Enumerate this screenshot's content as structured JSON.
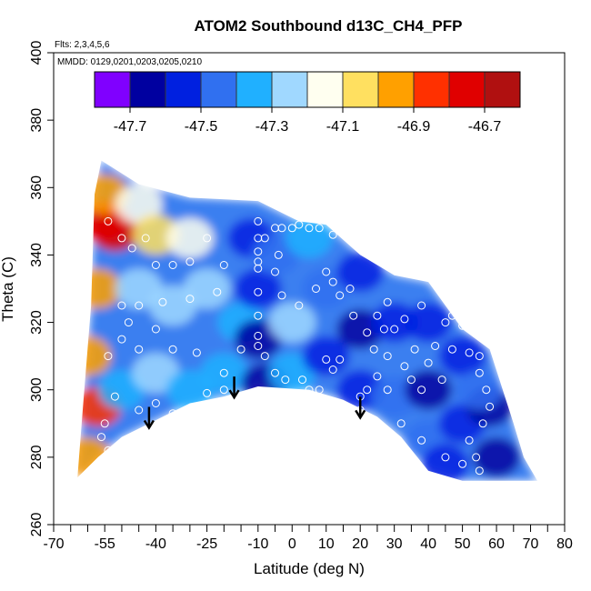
{
  "chart_data": {
    "type": "heatmap",
    "title": "ATOM2 Southbound d13C_CH4_PFP",
    "flights_note": "Flts: 2,3,4,5,6",
    "dates_note": "MMDD: 0129,0201,0203,0205,0210",
    "xlabel": "Latitude (deg N)",
    "ylabel": "Theta (C)",
    "xlim": [
      -70,
      80
    ],
    "ylim": [
      260,
      400
    ],
    "x_ticks": [
      -70,
      -55,
      -40,
      -25,
      -10,
      0,
      10,
      20,
      30,
      40,
      50,
      60,
      70,
      80
    ],
    "x_tick_labels": [
      "-70",
      "-55",
      "-40",
      "-25",
      "-10",
      "0",
      "10",
      "20",
      "30",
      "40",
      "50",
      "60",
      "70",
      "80"
    ],
    "x_minor_ticks": [
      -65,
      -60,
      -50,
      -45,
      -35,
      -30,
      -20,
      -15,
      -5,
      5,
      15,
      25,
      35,
      45,
      55,
      65,
      75
    ],
    "y_ticks": [
      260,
      280,
      300,
      320,
      340,
      360,
      380,
      400
    ],
    "y_tick_labels": [
      "260",
      "280",
      "300",
      "320",
      "340",
      "360",
      "380",
      "400"
    ],
    "colorbar": {
      "min": -47.8,
      "max": -46.6,
      "ticks": [
        -47.7,
        -47.5,
        -47.3,
        -47.1,
        -46.9,
        -46.7
      ],
      "tick_labels": [
        "-47.7",
        "-47.5",
        "-47.3",
        "-47.1",
        "-46.9",
        "-46.7"
      ],
      "colors": [
        "#8000ff",
        "#0000a0",
        "#0020e0",
        "#3070f0",
        "#20b0ff",
        "#a0d8ff",
        "#fffff0",
        "#ffe060",
        "#ffa000",
        "#ff3000",
        "#e00000",
        "#b01010"
      ]
    },
    "arrows": [
      {
        "lat": -42,
        "theta": 289
      },
      {
        "lat": -17,
        "theta": 298
      },
      {
        "lat": 20,
        "theta": 292
      }
    ],
    "domain_top": [
      [
        -58,
        358
      ],
      [
        -56,
        368
      ],
      [
        -45,
        361
      ],
      [
        -30,
        357
      ],
      [
        -10,
        356
      ],
      [
        2,
        350
      ],
      [
        10,
        349
      ],
      [
        20,
        340
      ],
      [
        30,
        334
      ],
      [
        40,
        332
      ],
      [
        50,
        318
      ],
      [
        58,
        312
      ],
      [
        65,
        290
      ],
      [
        68,
        280
      ],
      [
        72,
        273
      ]
    ],
    "domain_bottom": [
      [
        72,
        273
      ],
      [
        60,
        273
      ],
      [
        50,
        273
      ],
      [
        40,
        276
      ],
      [
        32,
        286
      ],
      [
        25,
        292
      ],
      [
        15,
        297
      ],
      [
        5,
        300
      ],
      [
        -10,
        301
      ],
      [
        -20,
        298
      ],
      [
        -30,
        296
      ],
      [
        -40,
        291
      ],
      [
        -50,
        286
      ],
      [
        -57,
        280
      ],
      [
        -63,
        274
      ]
    ],
    "domain_left": [
      [
        -63,
        274
      ],
      [
        -61,
        300
      ],
      [
        -59,
        325
      ],
      [
        -58,
        358
      ]
    ],
    "field_points": [
      {
        "lat": -55,
        "theta": 350,
        "value": -46.7
      },
      {
        "lat": -52,
        "theta": 347,
        "value": -46.75
      },
      {
        "lat": -55,
        "theta": 358,
        "value": -46.95
      },
      {
        "lat": -45,
        "theta": 355,
        "value": -47.15
      },
      {
        "lat": -40,
        "theta": 346,
        "value": -47.05
      },
      {
        "lat": -30,
        "theta": 345,
        "value": -47.1
      },
      {
        "lat": -57,
        "theta": 330,
        "value": -47.0
      },
      {
        "lat": -45,
        "theta": 330,
        "value": -47.25
      },
      {
        "lat": -35,
        "theta": 325,
        "value": -47.2
      },
      {
        "lat": -25,
        "theta": 330,
        "value": -47.3
      },
      {
        "lat": -60,
        "theta": 310,
        "value": -46.95
      },
      {
        "lat": -57,
        "theta": 295,
        "value": -46.9
      },
      {
        "lat": -60,
        "theta": 280,
        "value": -47.0
      },
      {
        "lat": -50,
        "theta": 300,
        "value": -47.35
      },
      {
        "lat": -40,
        "theta": 305,
        "value": -47.3
      },
      {
        "lat": -30,
        "theta": 300,
        "value": -47.35
      },
      {
        "lat": -20,
        "theta": 305,
        "value": -47.35
      },
      {
        "lat": -15,
        "theta": 320,
        "value": -47.35
      },
      {
        "lat": -10,
        "theta": 330,
        "value": -47.55
      },
      {
        "lat": -10,
        "theta": 315,
        "value": -47.6
      },
      {
        "lat": -8,
        "theta": 302,
        "value": -47.65
      },
      {
        "lat": -12,
        "theta": 345,
        "value": -47.5
      },
      {
        "lat": -5,
        "theta": 340,
        "value": -47.45
      },
      {
        "lat": 0,
        "theta": 320,
        "value": -47.25
      },
      {
        "lat": 0,
        "theta": 305,
        "value": -47.4
      },
      {
        "lat": 5,
        "theta": 345,
        "value": -47.4
      },
      {
        "lat": 10,
        "theta": 330,
        "value": -47.45
      },
      {
        "lat": 10,
        "theta": 310,
        "value": -47.5
      },
      {
        "lat": 20,
        "theta": 335,
        "value": -47.5
      },
      {
        "lat": 20,
        "theta": 318,
        "value": -47.65
      },
      {
        "lat": 20,
        "theta": 300,
        "value": -47.55
      },
      {
        "lat": 30,
        "theta": 320,
        "value": -47.5
      },
      {
        "lat": 30,
        "theta": 298,
        "value": -47.45
      },
      {
        "lat": 40,
        "theta": 320,
        "value": -47.5
      },
      {
        "lat": 40,
        "theta": 300,
        "value": -47.6
      },
      {
        "lat": 40,
        "theta": 285,
        "value": -47.45
      },
      {
        "lat": 50,
        "theta": 310,
        "value": -47.55
      },
      {
        "lat": 50,
        "theta": 290,
        "value": -47.5
      },
      {
        "lat": 58,
        "theta": 295,
        "value": -47.65
      },
      {
        "lat": 60,
        "theta": 280,
        "value": -47.6
      },
      {
        "lat": 55,
        "theta": 300,
        "value": -47.45
      },
      {
        "lat": 45,
        "theta": 278,
        "value": -47.5
      }
    ],
    "sample_points": [
      [
        -54,
        350
      ],
      [
        -50,
        345
      ],
      [
        -47,
        342
      ],
      [
        -43,
        345
      ],
      [
        -40,
        337
      ],
      [
        -35,
        337
      ],
      [
        -30,
        338
      ],
      [
        -25,
        345
      ],
      [
        -20,
        337
      ],
      [
        -50,
        325
      ],
      [
        -45,
        325
      ],
      [
        -38,
        326
      ],
      [
        -30,
        327
      ],
      [
        -22,
        329
      ],
      [
        -10,
        329
      ],
      [
        -48,
        320
      ],
      [
        -40,
        318
      ],
      [
        -54,
        310
      ],
      [
        -50,
        315
      ],
      [
        -45,
        312
      ],
      [
        -35,
        312
      ],
      [
        -28,
        311
      ],
      [
        -20,
        305
      ],
      [
        -15,
        312
      ],
      [
        -52,
        298
      ],
      [
        -45,
        294
      ],
      [
        -40,
        296
      ],
      [
        -35,
        293
      ],
      [
        -30,
        291
      ],
      [
        -25,
        299
      ],
      [
        -20,
        300
      ],
      [
        -55,
        290
      ],
      [
        -56,
        286
      ],
      [
        -54,
        282
      ],
      [
        -10,
        350
      ],
      [
        -10,
        345
      ],
      [
        -10,
        341
      ],
      [
        -10,
        338
      ],
      [
        -10,
        336
      ],
      [
        -10,
        322
      ],
      [
        -10,
        316
      ],
      [
        -10,
        313
      ],
      [
        -8,
        345
      ],
      [
        -5,
        348
      ],
      [
        -3,
        348
      ],
      [
        -4,
        340
      ],
      [
        0,
        348
      ],
      [
        2,
        349
      ],
      [
        5,
        348
      ],
      [
        8,
        348
      ],
      [
        11,
        350
      ],
      [
        12,
        346
      ],
      [
        -5,
        335
      ],
      [
        -3,
        328
      ],
      [
        2,
        325
      ],
      [
        7,
        330
      ],
      [
        10,
        335
      ],
      [
        12,
        332
      ],
      [
        14,
        328
      ],
      [
        17,
        330
      ],
      [
        -8,
        310
      ],
      [
        -5,
        305
      ],
      [
        -2,
        303
      ],
      [
        3,
        303
      ],
      [
        5,
        300
      ],
      [
        8,
        300
      ],
      [
        10,
        309
      ],
      [
        12,
        306
      ],
      [
        14,
        309
      ],
      [
        20,
        298
      ],
      [
        20,
        294
      ],
      [
        22,
        300
      ],
      [
        25,
        304
      ],
      [
        27,
        318
      ],
      [
        30,
        318
      ],
      [
        33,
        307
      ],
      [
        35,
        303
      ],
      [
        38,
        300
      ],
      [
        22,
        317
      ],
      [
        25,
        322
      ],
      [
        28,
        326
      ],
      [
        33,
        321
      ],
      [
        38,
        325
      ],
      [
        42,
        313
      ],
      [
        45,
        320
      ],
      [
        47,
        322
      ],
      [
        50,
        319
      ],
      [
        18,
        322
      ],
      [
        24,
        312
      ],
      [
        28,
        310
      ],
      [
        36,
        312
      ],
      [
        40,
        308
      ],
      [
        44,
        303
      ],
      [
        47,
        312
      ],
      [
        52,
        311
      ],
      [
        55,
        310
      ],
      [
        55,
        305
      ],
      [
        57,
        300
      ],
      [
        58,
        295
      ],
      [
        56,
        290
      ],
      [
        52,
        285
      ],
      [
        54,
        280
      ],
      [
        50,
        278
      ],
      [
        55,
        276
      ],
      [
        45,
        280
      ],
      [
        38,
        285
      ],
      [
        32,
        290
      ],
      [
        28,
        300
      ]
    ]
  }
}
